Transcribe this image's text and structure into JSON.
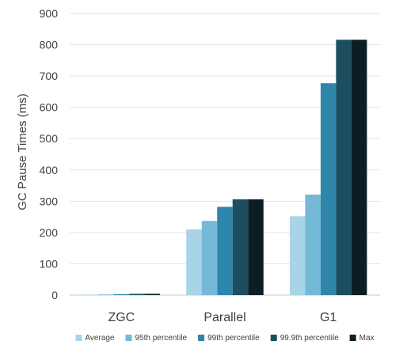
{
  "chart_data": {
    "type": "bar",
    "title": "",
    "xlabel": "",
    "ylabel": "GC Pause Times (ms)",
    "ylim": [
      0,
      900
    ],
    "yticks": [
      0,
      100,
      200,
      300,
      400,
      500,
      600,
      700,
      800,
      900
    ],
    "grid": true,
    "legend_position": "bottom",
    "categories": [
      "ZGC",
      "Parallel",
      "G1"
    ],
    "series": [
      {
        "name": "Average",
        "color": "#a9d4e8",
        "values": [
          1,
          210,
          252
        ]
      },
      {
        "name": "95th percentile",
        "color": "#74b9d6",
        "values": [
          2,
          237,
          321
        ]
      },
      {
        "name": "99th percentile",
        "color": "#2e86ab",
        "values": [
          3,
          282,
          677
        ]
      },
      {
        "name": "99.9th percentile",
        "color": "#1c4e60",
        "values": [
          4,
          306,
          816
        ]
      },
      {
        "name": "Max",
        "color": "#0c1e24",
        "values": [
          4,
          306,
          816
        ]
      }
    ]
  }
}
